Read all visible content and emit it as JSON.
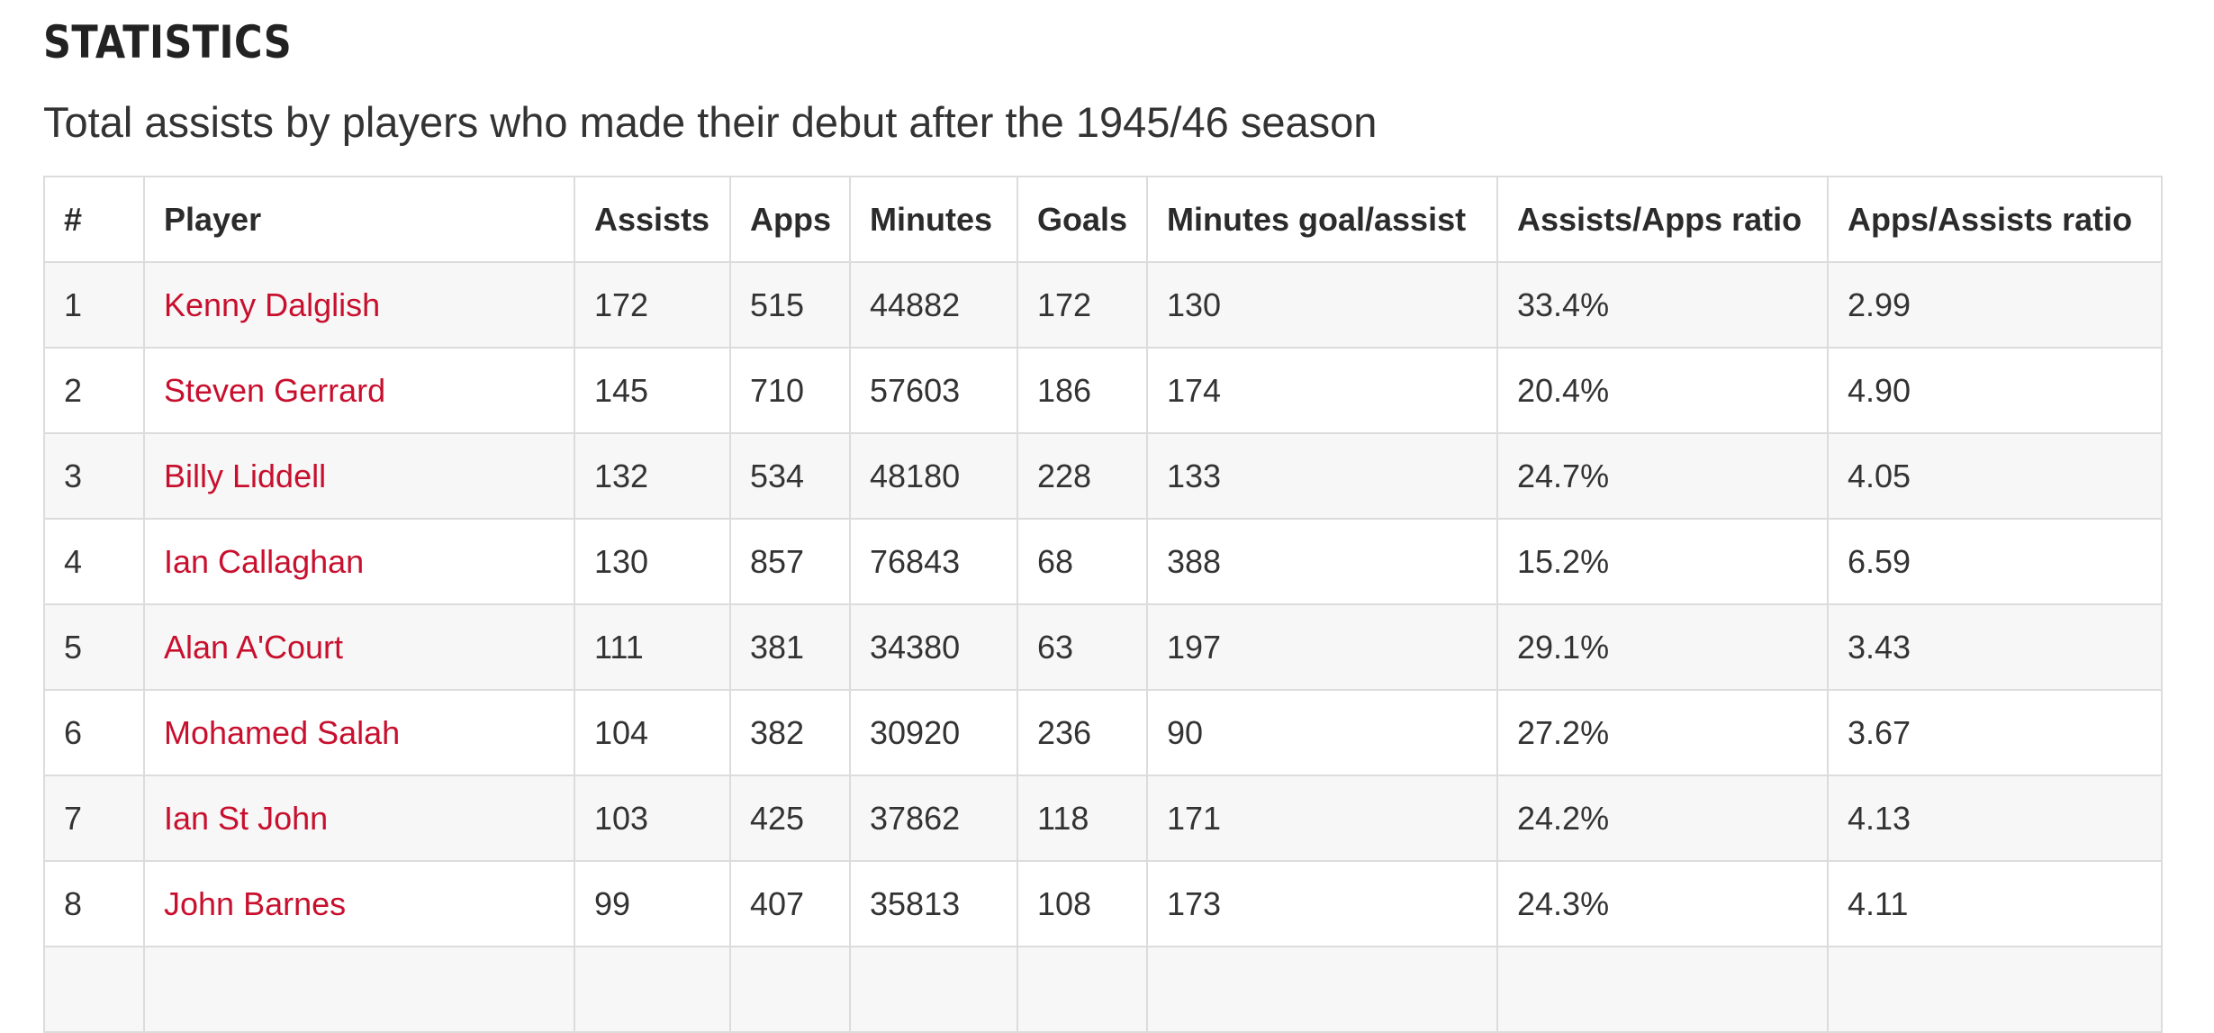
{
  "section_title": "STATISTICS",
  "caption": "Total assists by players who made their debut after the 1945/46 season",
  "colors": {
    "link": "#c8102e",
    "row_stripe": "#f7f7f7",
    "border": "#dcdcdc"
  },
  "table": {
    "headers": [
      "#",
      "Player",
      "Assists",
      "Apps",
      "Minutes",
      "Goals",
      "Minutes goal/assist",
      "Assists/Apps ratio",
      "Apps/Assists ratio"
    ],
    "rows": [
      {
        "rank": "1",
        "player": "Kenny Dalglish",
        "assists": "172",
        "apps": "515",
        "minutes": "44882",
        "goals": "172",
        "min_goal_assist": "130",
        "assists_apps_ratio": "33.4%",
        "apps_assists_ratio": "2.99"
      },
      {
        "rank": "2",
        "player": "Steven Gerrard",
        "assists": "145",
        "apps": "710",
        "minutes": "57603",
        "goals": "186",
        "min_goal_assist": "174",
        "assists_apps_ratio": "20.4%",
        "apps_assists_ratio": "4.90"
      },
      {
        "rank": "3",
        "player": "Billy Liddell",
        "assists": "132",
        "apps": "534",
        "minutes": "48180",
        "goals": "228",
        "min_goal_assist": "133",
        "assists_apps_ratio": "24.7%",
        "apps_assists_ratio": "4.05"
      },
      {
        "rank": "4",
        "player": "Ian Callaghan",
        "assists": "130",
        "apps": "857",
        "minutes": "76843",
        "goals": "68",
        "min_goal_assist": "388",
        "assists_apps_ratio": "15.2%",
        "apps_assists_ratio": "6.59"
      },
      {
        "rank": "5",
        "player": "Alan A'Court",
        "assists": "111",
        "apps": "381",
        "minutes": "34380",
        "goals": "63",
        "min_goal_assist": "197",
        "assists_apps_ratio": "29.1%",
        "apps_assists_ratio": "3.43"
      },
      {
        "rank": "6",
        "player": "Mohamed Salah",
        "assists": "104",
        "apps": "382",
        "minutes": "30920",
        "goals": "236",
        "min_goal_assist": "90",
        "assists_apps_ratio": "27.2%",
        "apps_assists_ratio": "3.67"
      },
      {
        "rank": "7",
        "player": "Ian St John",
        "assists": "103",
        "apps": "425",
        "minutes": "37862",
        "goals": "118",
        "min_goal_assist": "171",
        "assists_apps_ratio": "24.2%",
        "apps_assists_ratio": "4.13"
      },
      {
        "rank": "8",
        "player": "John Barnes",
        "assists": "99",
        "apps": "407",
        "minutes": "35813",
        "goals": "108",
        "min_goal_assist": "173",
        "assists_apps_ratio": "24.3%",
        "apps_assists_ratio": "4.11"
      },
      {
        "rank": "",
        "player": "",
        "assists": "",
        "apps": "",
        "minutes": "",
        "goals": "",
        "min_goal_assist": "",
        "assists_apps_ratio": "",
        "apps_assists_ratio": ""
      }
    ]
  }
}
